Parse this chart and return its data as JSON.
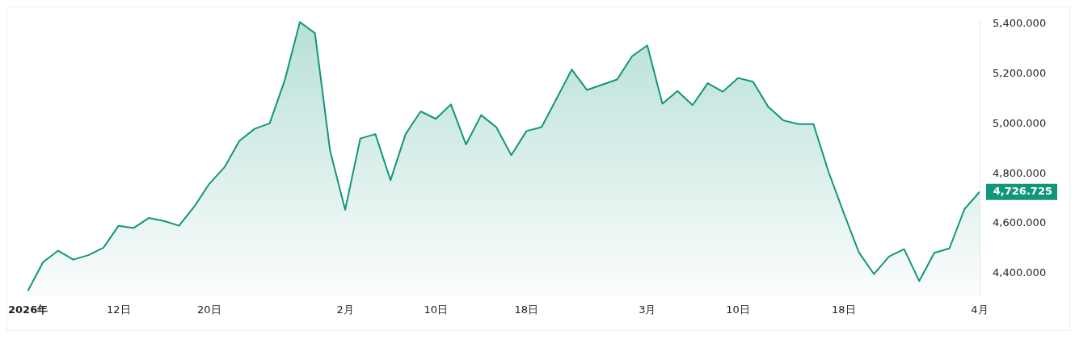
{
  "chart_data": {
    "type": "area",
    "categories": [
      "2026年",
      null,
      null,
      null,
      null,
      null,
      "12日",
      null,
      null,
      null,
      null,
      null,
      "20日",
      null,
      null,
      null,
      null,
      null,
      null,
      null,
      null,
      "2月",
      null,
      null,
      null,
      null,
      null,
      "10日",
      null,
      null,
      null,
      null,
      null,
      "18日",
      null,
      null,
      null,
      null,
      null,
      null,
      null,
      "3月",
      null,
      null,
      null,
      null,
      null,
      "10日",
      null,
      null,
      null,
      null,
      null,
      null,
      "18日",
      null,
      null,
      null,
      null,
      null,
      null,
      null,
      null,
      "4月"
    ],
    "series": [
      {
        "color": "#11967a",
        "values": [
          4330,
          4445,
          4491,
          4455,
          4473,
          4503,
          4591,
          4582,
          4622,
          4610,
          4591,
          4667,
          4759,
          4825,
          4932,
          4980,
          5002,
          5175,
          5409,
          5364,
          4892,
          4655,
          4941,
          4959,
          4774,
          4959,
          5050,
          5020,
          5078,
          4917,
          5035,
          4987,
          4874,
          4971,
          4987,
          5102,
          5218,
          5136,
          5157,
          5178,
          5272,
          5315,
          5081,
          5132,
          5075,
          5163,
          5129,
          5184,
          5169,
          5069,
          5014,
          4999,
          4999,
          4807,
          4643,
          4485,
          4397,
          4467,
          4497,
          4369,
          4482,
          4500,
          4658,
          4726.725
        ]
      }
    ],
    "ylim": [
      4310,
      5420
    ],
    "yticks": [
      {
        "value": 4400,
        "label": "4,400.000"
      },
      {
        "value": 4600,
        "label": "4,600.000"
      },
      {
        "value": 4800,
        "label": "4,800.000"
      },
      {
        "value": 5000,
        "label": "5,000.000"
      },
      {
        "value": 5200,
        "label": "5,200.000"
      },
      {
        "value": 5400,
        "label": "5,400.000"
      }
    ],
    "annotations": [
      {
        "text": "4,726.725",
        "x": "4月",
        "y": 4726.725
      }
    ],
    "grid": false,
    "legend": false,
    "marker": "none",
    "line_style": "solid"
  }
}
